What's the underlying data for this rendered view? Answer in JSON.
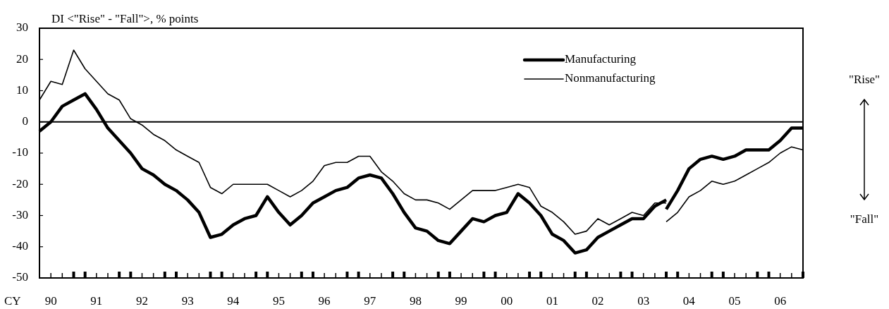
{
  "chart_data": {
    "type": "line",
    "ylabel": "DI <\"Rise\" - \"Fall\">, % points",
    "xlabel": "CY",
    "ylim": [
      -50,
      30
    ],
    "yticks": [
      30,
      20,
      10,
      0,
      -10,
      -20,
      -30,
      -40,
      -50
    ],
    "categories": [
      null,
      "90",
      null,
      null,
      null,
      "91",
      null,
      null,
      null,
      "92",
      null,
      null,
      null,
      "93",
      null,
      null,
      null,
      "94",
      null,
      null,
      null,
      "95",
      null,
      null,
      null,
      "96",
      null,
      null,
      null,
      "97",
      null,
      null,
      null,
      "98",
      null,
      null,
      null,
      "99",
      null,
      null,
      null,
      "00",
      null,
      null,
      null,
      "01",
      null,
      null,
      null,
      "02",
      null,
      null,
      null,
      "03",
      null,
      null,
      null,
      "04",
      null,
      null,
      null,
      "05",
      null,
      null,
      null,
      "06",
      null,
      null
    ],
    "series": [
      {
        "name": "Manufacturing",
        "color": "#000000",
        "values": [
          -3,
          0,
          5,
          7,
          9,
          4,
          -2,
          -6,
          -10,
          -15,
          -17,
          -20,
          -22,
          -25,
          -29,
          -37,
          -36,
          -33,
          -31,
          -30,
          -24,
          -29,
          -33,
          -30,
          -26,
          -24,
          -22,
          -21,
          -18,
          -17,
          -18,
          -23,
          -29,
          -34,
          -35,
          -38,
          -39,
          -35,
          -31,
          -32,
          -30,
          -29,
          -23,
          -26,
          -30,
          -36,
          -38,
          -42,
          -41,
          -37,
          -35,
          -33,
          -31,
          -31,
          -27,
          -25,
          null,
          null,
          null,
          null,
          null,
          null,
          null,
          null,
          null,
          null,
          null,
          null
        ]
      },
      {
        "color": "#000000",
        "values": [
          null,
          null,
          null,
          null,
          null,
          null,
          null,
          null,
          null,
          null,
          null,
          null,
          null,
          null,
          null,
          null,
          null,
          null,
          null,
          null,
          null,
          null,
          null,
          null,
          null,
          null,
          null,
          null,
          null,
          null,
          null,
          null,
          null,
          null,
          null,
          null,
          null,
          null,
          null,
          null,
          null,
          null,
          null,
          null,
          null,
          null,
          null,
          null,
          null,
          null,
          null,
          null,
          null,
          null,
          null,
          -28,
          -22,
          -15,
          -12,
          -11,
          -12,
          -11,
          -9,
          -9,
          -9,
          -6,
          -2,
          -2
        ]
      },
      {
        "name": "Nonmanufacturing",
        "color": "#000000",
        "values": [
          7,
          13,
          12,
          23,
          17,
          13,
          9,
          7,
          1,
          -1,
          -4,
          -6,
          -9,
          -11,
          -13,
          -21,
          -23,
          -20,
          -20,
          -20,
          -20,
          -22,
          -24,
          -22,
          -19,
          -14,
          -13,
          -13,
          -11,
          -11,
          -16,
          -19,
          -23,
          -25,
          -25,
          -26,
          -28,
          -25,
          -22,
          -22,
          -22,
          -21,
          -20,
          -21,
          -27,
          -29,
          -32,
          -36,
          -35,
          -31,
          -33,
          -31,
          -29,
          -30,
          -26,
          -26,
          null,
          null,
          null,
          null,
          null,
          null,
          null,
          null,
          null,
          null,
          null,
          null
        ]
      },
      {
        "color": "#000000",
        "values": [
          null,
          null,
          null,
          null,
          null,
          null,
          null,
          null,
          null,
          null,
          null,
          null,
          null,
          null,
          null,
          null,
          null,
          null,
          null,
          null,
          null,
          null,
          null,
          null,
          null,
          null,
          null,
          null,
          null,
          null,
          null,
          null,
          null,
          null,
          null,
          null,
          null,
          null,
          null,
          null,
          null,
          null,
          null,
          null,
          null,
          null,
          null,
          null,
          null,
          null,
          null,
          null,
          null,
          null,
          null,
          -32,
          -29,
          -24,
          -22,
          -19,
          -20,
          -19,
          -17,
          -15,
          -13,
          -10,
          -8,
          -9
        ]
      }
    ],
    "ref_lines": [
      {
        "axis": "y",
        "value": 0
      }
    ],
    "legend": "top right",
    "annotations": [
      "\"Rise\"",
      "\"Fall\""
    ]
  }
}
